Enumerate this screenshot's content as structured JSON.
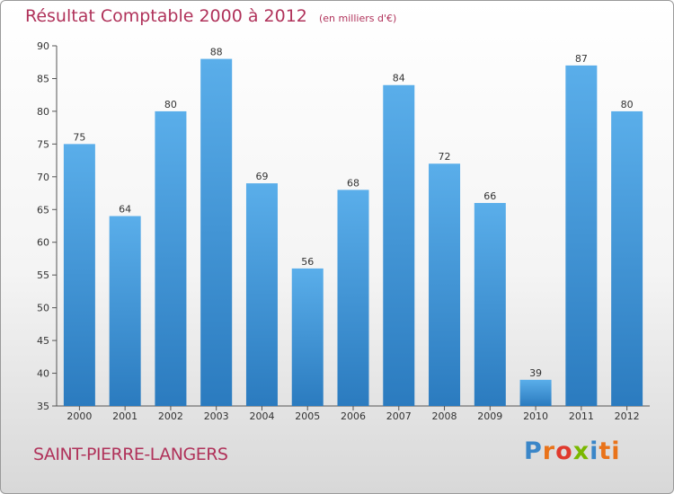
{
  "chart_data": {
    "type": "bar",
    "title": "Résultat Comptable 2000 à 2012",
    "unit_label": "(en milliers d'€)",
    "categories": [
      "2000",
      "2001",
      "2002",
      "2003",
      "2004",
      "2005",
      "2006",
      "2007",
      "2008",
      "2009",
      "2010",
      "2011",
      "2012"
    ],
    "values": [
      75,
      64,
      80,
      88,
      69,
      56,
      68,
      84,
      72,
      66,
      39,
      87,
      80
    ],
    "ylim": [
      35,
      90
    ],
    "yticks": [
      35,
      40,
      45,
      50,
      55,
      60,
      65,
      70,
      75,
      80,
      85,
      90
    ],
    "grid": false,
    "bar_color_top": "#5aaeea",
    "bar_color_bottom": "#2b7bbf"
  },
  "place_name": "SAINT-PIERRE-LANGERS",
  "logo": {
    "letters": [
      "P",
      "r",
      "o",
      "x",
      "i",
      "ti"
    ]
  }
}
